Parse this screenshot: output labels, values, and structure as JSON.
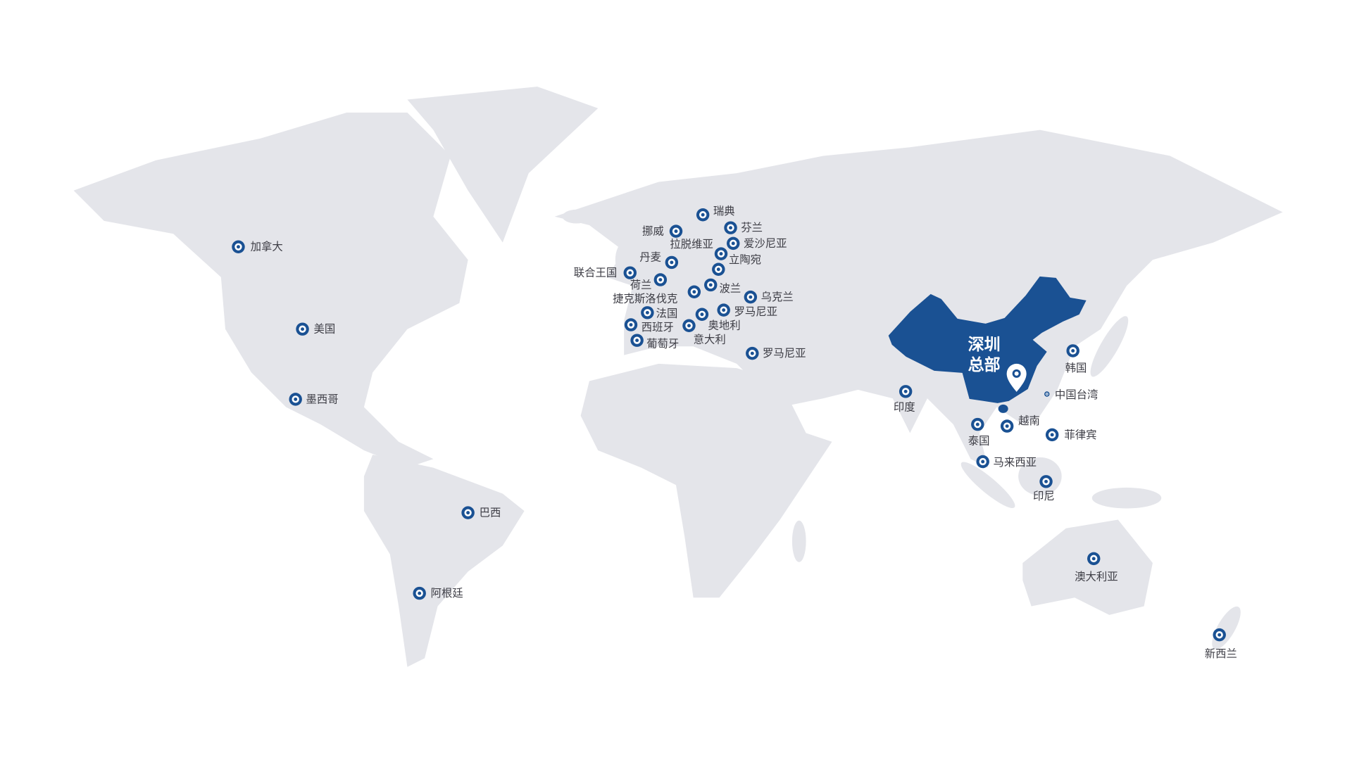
{
  "colors": {
    "land": "#e4e5ea",
    "china": "#1a5193",
    "marker": "#1a5193",
    "label": "#3d3d45"
  },
  "headquarters": {
    "line1": "深圳",
    "line2": "总部",
    "icon": "location-pin-icon"
  },
  "markers": [
    "加拿大",
    "美国",
    "墨西哥",
    "巴西",
    "阿根廷",
    "瑞典",
    "挪威",
    "芬兰",
    "拉脱维亚",
    "爱沙尼亚",
    "丹麦",
    "立陶宛",
    "联合王国",
    "荷兰",
    "波兰",
    "捷克斯洛伐克",
    "乌克兰",
    "法国",
    "罗马尼亚",
    "西班牙",
    "奥地利",
    "葡萄牙",
    "意大利",
    "罗马尼亚",
    "印度",
    "韩国",
    "中国台湾",
    "泰国",
    "越南",
    "菲律宾",
    "马来西亚",
    "印尼",
    "澳大利亚",
    "新西兰"
  ]
}
